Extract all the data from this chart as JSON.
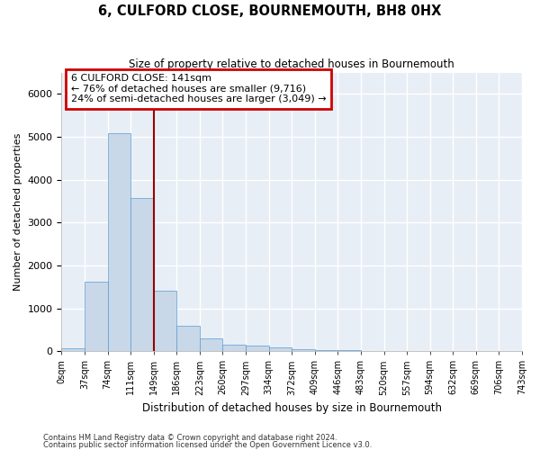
{
  "title": "6, CULFORD CLOSE, BOURNEMOUTH, BH8 0HX",
  "subtitle": "Size of property relative to detached houses in Bournemouth",
  "xlabel": "Distribution of detached houses by size in Bournemouth",
  "ylabel": "Number of detached properties",
  "bar_values": [
    75,
    1620,
    5080,
    3580,
    1400,
    600,
    290,
    150,
    120,
    90,
    50,
    30,
    20,
    10,
    5,
    3,
    2,
    1,
    1,
    0
  ],
  "bin_labels": [
    "0sqm",
    "37sqm",
    "74sqm",
    "111sqm",
    "149sqm",
    "186sqm",
    "223sqm",
    "260sqm",
    "297sqm",
    "334sqm",
    "372sqm",
    "409sqm",
    "446sqm",
    "483sqm",
    "520sqm",
    "557sqm",
    "594sqm",
    "632sqm",
    "669sqm",
    "706sqm",
    "743sqm"
  ],
  "bar_color": "#c8d8e8",
  "bar_edge_color": "#5b9bd5",
  "bg_color": "#e8eef5",
  "grid_color": "#ffffff",
  "vline_color": "#990000",
  "annotation_text": "6 CULFORD CLOSE: 141sqm\n← 76% of detached houses are smaller (9,716)\n24% of semi-detached houses are larger (3,049) →",
  "annotation_box_edgecolor": "#cc0000",
  "ylim": [
    0,
    6500
  ],
  "footnote1": "Contains HM Land Registry data © Crown copyright and database right 2024.",
  "footnote2": "Contains public sector information licensed under the Open Government Licence v3.0."
}
